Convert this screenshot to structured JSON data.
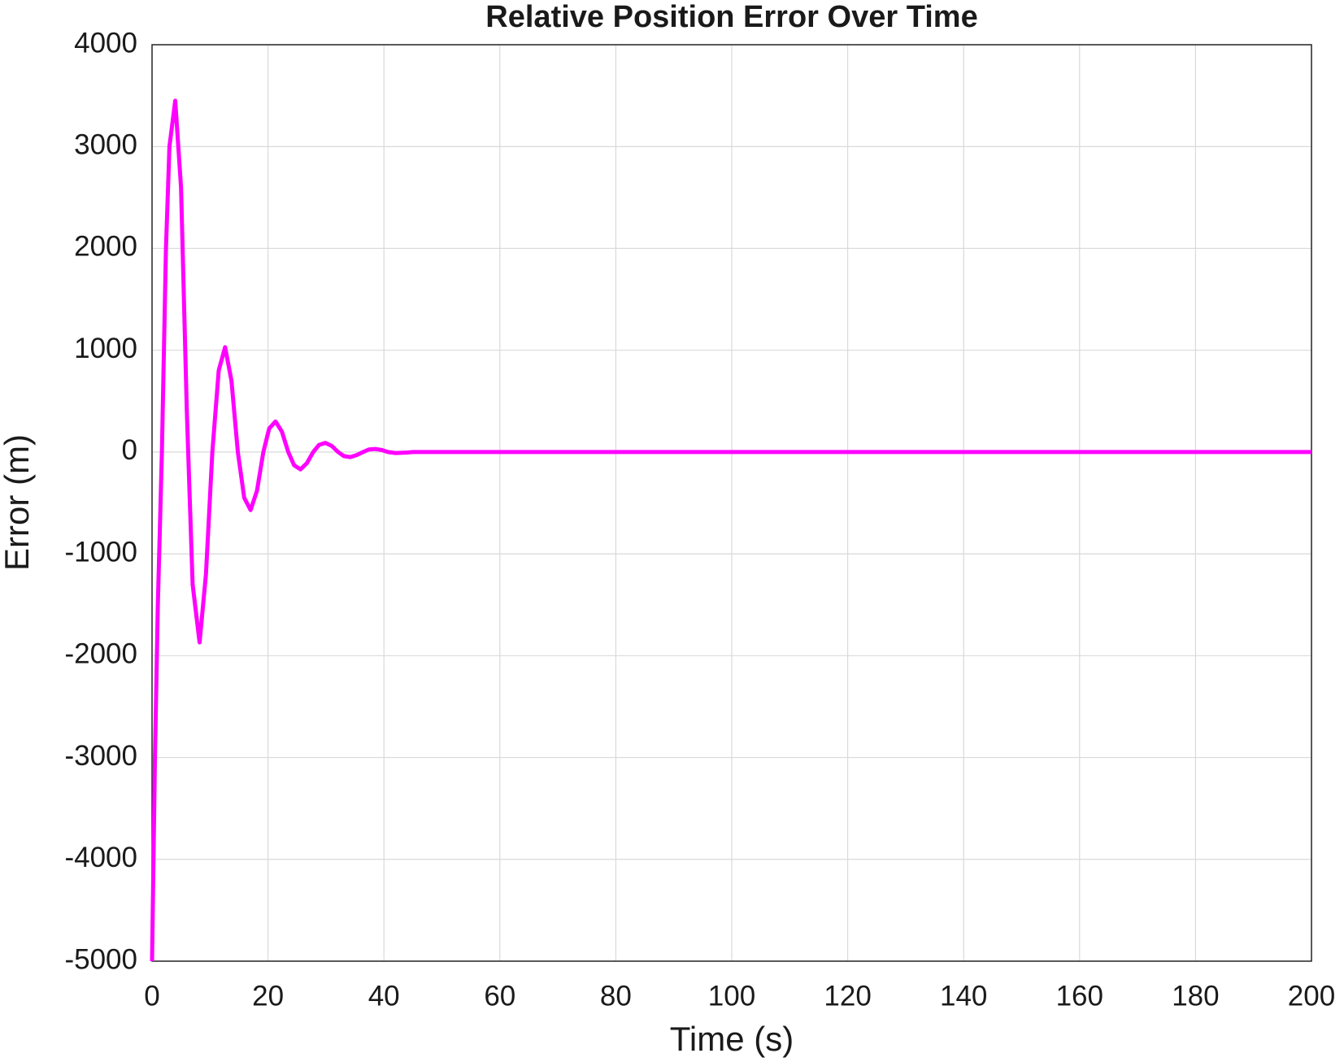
{
  "chart_data": {
    "type": "line",
    "title": "Relative Position Error Over Time",
    "xlabel": "Time (s)",
    "ylabel": "Error (m)",
    "x": [
      0,
      0.5,
      1.0,
      1.7,
      2.4,
      3.0,
      4.0,
      5.0,
      6.0,
      7.0,
      8.2,
      9.3,
      10.4,
      11.5,
      12.6,
      13.7,
      14.8,
      15.9,
      17.0,
      18.1,
      19.2,
      20.2,
      21.3,
      22.4,
      23.5,
      24.5,
      25.6,
      26.7,
      27.8,
      28.8,
      29.9,
      31.0,
      32.1,
      33.1,
      34.2,
      35.3,
      36.4,
      37.4,
      38.5,
      39.6,
      40.7,
      42.0,
      44.0,
      45,
      200
    ],
    "series": [
      {
        "color": "#ff00ff",
        "values": [
          -5000,
          -3000,
          -1500,
          0,
          2000,
          3000,
          3450,
          2600,
          400,
          -1300,
          -1870,
          -1200,
          0,
          800,
          1030,
          700,
          0,
          -450,
          -570,
          -380,
          0,
          230,
          300,
          200,
          0,
          -130,
          -170,
          -110,
          0,
          70,
          90,
          60,
          0,
          -40,
          -50,
          -30,
          0,
          25,
          30,
          20,
          0,
          -10,
          -5,
          0,
          0
        ]
      }
    ],
    "xlim": [
      0,
      200
    ],
    "xticks": [
      0,
      20,
      40,
      60,
      80,
      100,
      120,
      140,
      160,
      180,
      200
    ],
    "ylim": [
      -5000,
      4000
    ],
    "yticks": [
      -5000,
      -4000,
      -3000,
      -2000,
      -1000,
      0,
      1000,
      2000,
      3000,
      4000
    ],
    "grid": true
  }
}
